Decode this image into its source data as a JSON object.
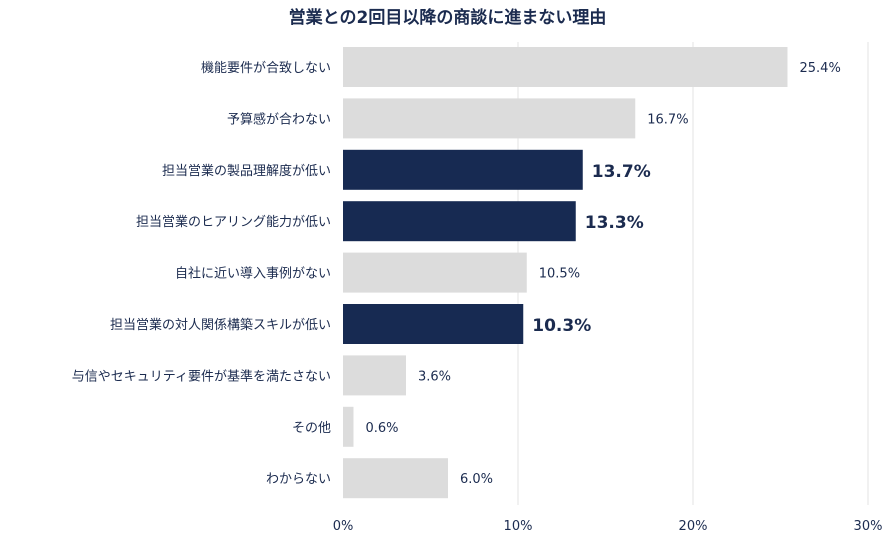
{
  "chart_data": {
    "type": "bar",
    "orientation": "horizontal",
    "title": "営業との2回目以降の商談に進まない理由",
    "categories": [
      "機能要件が合致しない",
      "予算感が合わない",
      "担当営業の製品理解度が低い",
      "担当営業のヒアリング能力が低い",
      "自社に近い導入事例がない",
      "担当営業の対人関係構築スキルが低い",
      "与信やセキュリティ要件が基準を満たさない",
      "その他",
      "わからない"
    ],
    "values": [
      25.4,
      16.7,
      13.7,
      13.3,
      10.5,
      10.3,
      3.6,
      0.6,
      6.0
    ],
    "value_labels": [
      "25.4%",
      "16.7%",
      "13.7%",
      "13.3%",
      "10.5%",
      "10.3%",
      "3.6%",
      "0.6%",
      "6.0%"
    ],
    "highlighted": [
      false,
      false,
      true,
      true,
      false,
      true,
      false,
      false,
      false
    ],
    "xlim": [
      0,
      30
    ],
    "x_ticks": [
      0,
      10,
      20,
      30
    ],
    "x_tick_labels": [
      "0%",
      "10%",
      "20%",
      "30%"
    ],
    "grid": true,
    "colors": {
      "default_bar": "#dcdcdc",
      "highlight_bar": "#172a52",
      "grid": "#e3e3e3",
      "text": "#1b2b4f"
    }
  }
}
